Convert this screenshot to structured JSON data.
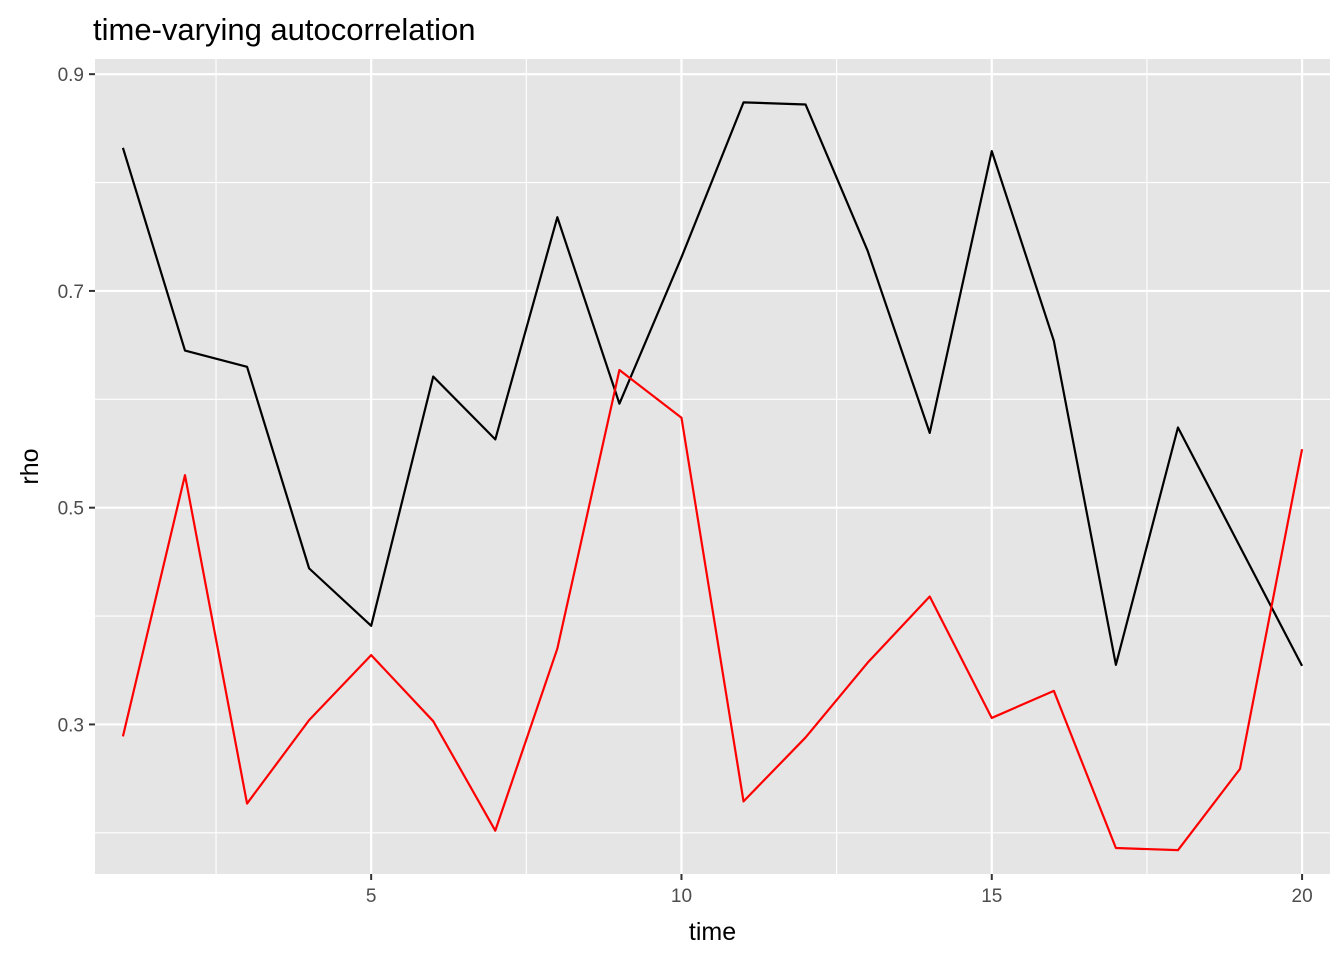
{
  "chart_data": {
    "type": "line",
    "title": "time-varying autocorrelation",
    "xlabel": "time",
    "ylabel": "rho",
    "xlim": [
      0.55,
      20.45
    ],
    "ylim": [
      0.162,
      0.914
    ],
    "x_ticks": [
      5,
      10,
      15,
      20
    ],
    "x_tick_labels": [
      "5",
      "10",
      "15",
      "20"
    ],
    "y_ticks": [
      0.3,
      0.5,
      0.7,
      0.9
    ],
    "y_tick_labels": [
      "0.3",
      "0.5",
      "0.7",
      "0.9"
    ],
    "x_minor_ticks": [
      2.5,
      7.5,
      12.5,
      17.5
    ],
    "y_minor_ticks": [
      0.2,
      0.4,
      0.6,
      0.8
    ],
    "grid": true,
    "panel_background": "#e5e5e5",
    "grid_color": "#ffffff",
    "x": [
      1,
      2,
      3,
      4,
      5,
      6,
      7,
      8,
      9,
      10,
      11,
      12,
      13,
      14,
      15,
      16,
      17,
      18,
      19,
      20
    ],
    "series": [
      {
        "color": "#000000",
        "values": [
          0.832,
          0.645,
          0.63,
          0.444,
          0.391,
          0.621,
          0.563,
          0.768,
          0.596,
          0.731,
          0.874,
          0.872,
          0.737,
          0.569,
          0.829,
          0.654,
          0.355,
          0.574,
          0.464,
          0.354
        ]
      },
      {
        "color": "#ff0000",
        "values": [
          0.289,
          0.53,
          0.227,
          0.304,
          0.364,
          0.303,
          0.202,
          0.37,
          0.627,
          0.583,
          0.229,
          0.288,
          0.357,
          0.418,
          0.306,
          0.331,
          0.186,
          0.184,
          0.259,
          0.554
        ]
      }
    ]
  }
}
